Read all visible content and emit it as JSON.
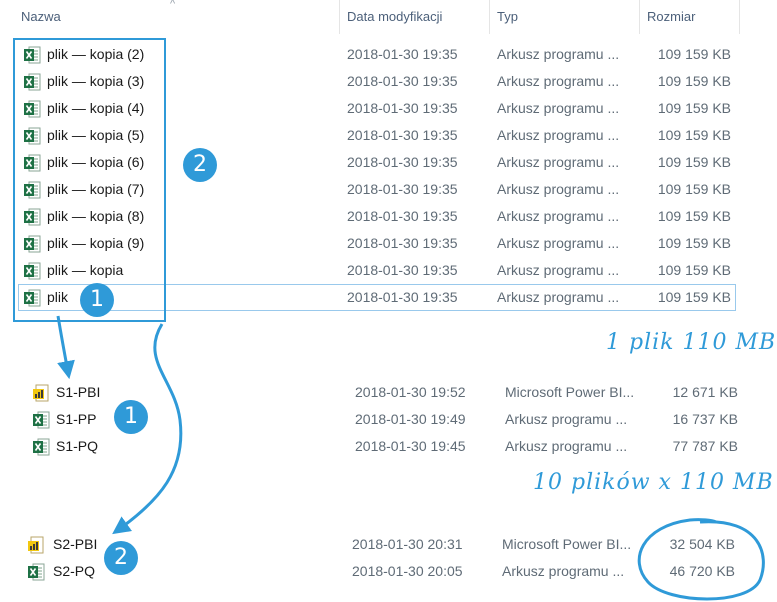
{
  "header": {
    "col_name": "Nazwa",
    "col_date": "Data modyfikacji",
    "col_type": "Typ",
    "col_size": "Rozmiar",
    "sort_indicator": "^"
  },
  "group1_files": [
    {
      "name": "plik — kopia (2)",
      "date": "2018-01-30 19:35",
      "type": "Arkusz programu ...",
      "size": "109 159 KB",
      "icon": "excel-icon"
    },
    {
      "name": "plik — kopia (3)",
      "date": "2018-01-30 19:35",
      "type": "Arkusz programu ...",
      "size": "109 159 KB",
      "icon": "excel-icon"
    },
    {
      "name": "plik — kopia (4)",
      "date": "2018-01-30 19:35",
      "type": "Arkusz programu ...",
      "size": "109 159 KB",
      "icon": "excel-icon"
    },
    {
      "name": "plik — kopia (5)",
      "date": "2018-01-30 19:35",
      "type": "Arkusz programu ...",
      "size": "109 159 KB",
      "icon": "excel-icon"
    },
    {
      "name": "plik — kopia (6)",
      "date": "2018-01-30 19:35",
      "type": "Arkusz programu ...",
      "size": "109 159 KB",
      "icon": "excel-icon"
    },
    {
      "name": "plik — kopia (7)",
      "date": "2018-01-30 19:35",
      "type": "Arkusz programu ...",
      "size": "109 159 KB",
      "icon": "excel-icon"
    },
    {
      "name": "plik — kopia (8)",
      "date": "2018-01-30 19:35",
      "type": "Arkusz programu ...",
      "size": "109 159 KB",
      "icon": "excel-icon"
    },
    {
      "name": "plik — kopia (9)",
      "date": "2018-01-30 19:35",
      "type": "Arkusz programu ...",
      "size": "109 159 KB",
      "icon": "excel-icon"
    },
    {
      "name": "plik — kopia",
      "date": "2018-01-30 19:35",
      "type": "Arkusz programu ...",
      "size": "109 159 KB",
      "icon": "excel-icon"
    },
    {
      "name": "plik",
      "date": "2018-01-30 19:35",
      "type": "Arkusz programu ...",
      "size": "109 159 KB",
      "icon": "excel-icon"
    }
  ],
  "group2_files": [
    {
      "name": "S1-PBI",
      "date": "2018-01-30 19:52",
      "type": "Microsoft Power BI...",
      "size": "12 671 KB",
      "icon": "powerbi-icon"
    },
    {
      "name": "S1-PP",
      "date": "2018-01-30 19:49",
      "type": "Arkusz programu ...",
      "size": "16 737 KB",
      "icon": "excel-icon"
    },
    {
      "name": "S1-PQ",
      "date": "2018-01-30 19:45",
      "type": "Arkusz programu ...",
      "size": "77 787 KB",
      "icon": "excel-icon"
    }
  ],
  "group3_files": [
    {
      "name": "S2-PBI",
      "date": "2018-01-30 20:31",
      "type": "Microsoft Power BI...",
      "size": "32 504 KB",
      "icon": "powerbi-icon"
    },
    {
      "name": "S2-PQ",
      "date": "2018-01-30 20:05",
      "type": "Arkusz programu ...",
      "size": "46 720 KB",
      "icon": "excel-icon"
    }
  ],
  "annotations": {
    "badge_a": "2",
    "badge_b": "1",
    "badge_c": "1",
    "badge_d": "2",
    "note_one_file": "1 plik 110 MB",
    "note_ten_files": "10 plików x 110 MB"
  },
  "colors": {
    "accent": "#2f9ad8",
    "excel_green": "#1e7145",
    "powerbi_yellow": "#f2c811"
  }
}
